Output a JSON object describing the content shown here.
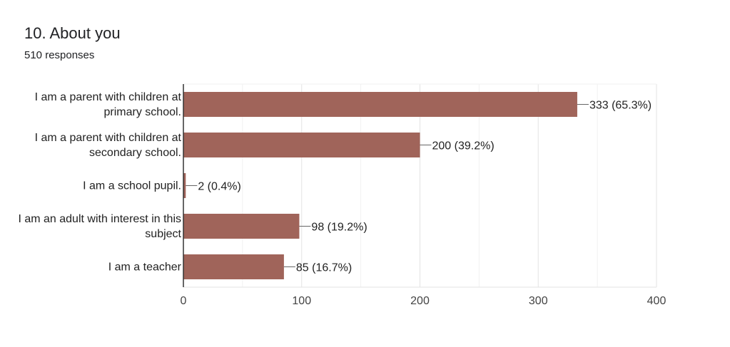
{
  "header": {
    "title": "10. About you",
    "responses": "510 responses"
  },
  "chart_data": {
    "type": "bar",
    "orientation": "horizontal",
    "categories": [
      [
        "I am a parent with children at",
        "primary school."
      ],
      [
        "I am a parent with children at",
        "secondary school."
      ],
      [
        "I am a school pupil."
      ],
      [
        "I am an adult with interest in this",
        "subject"
      ],
      [
        "I am a teacher"
      ]
    ],
    "values": [
      333,
      200,
      2,
      98,
      85
    ],
    "value_labels": [
      "333 (65.3%)",
      "200 (39.2%)",
      "2 (0.4%)",
      "98 (19.2%)",
      "85 (16.7%)"
    ],
    "xlim": [
      0,
      400
    ],
    "xticks": [
      "0",
      "100",
      "200",
      "300",
      "400"
    ],
    "grid": true,
    "bar_color": "#a0645a",
    "title": "",
    "xlabel": "",
    "ylabel": ""
  }
}
